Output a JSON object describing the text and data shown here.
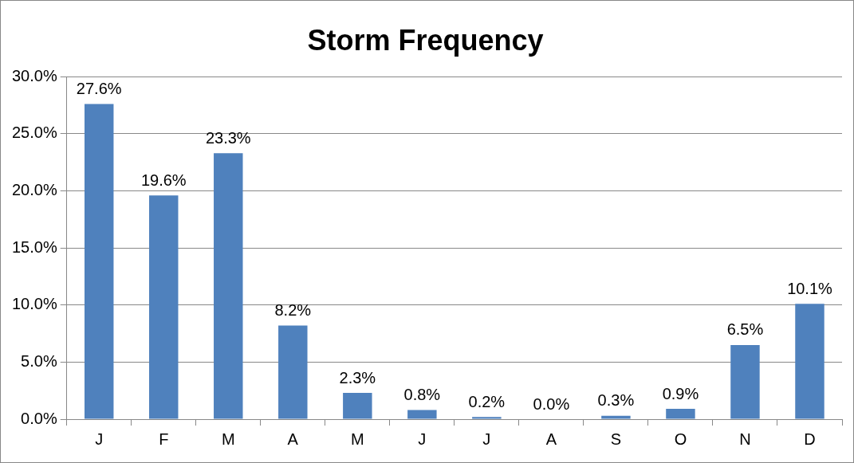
{
  "chart_data": {
    "type": "bar",
    "title": "Storm Frequency",
    "categories": [
      "J",
      "F",
      "M",
      "A",
      "M",
      "J",
      "J",
      "A",
      "S",
      "O",
      "N",
      "D"
    ],
    "values": [
      27.6,
      19.6,
      23.3,
      8.2,
      2.3,
      0.8,
      0.2,
      0.0,
      0.3,
      0.9,
      6.5,
      10.1
    ],
    "value_labels": [
      "27.6%",
      "19.6%",
      "23.3%",
      "8.2%",
      "2.3%",
      "0.8%",
      "0.2%",
      "0.0%",
      "0.3%",
      "0.9%",
      "6.5%",
      "10.1%"
    ],
    "color": "#4f81bd",
    "ylim": [
      0,
      30
    ],
    "yticks": [
      {
        "value": 0,
        "label": "0.0%"
      },
      {
        "value": 5,
        "label": "5.0%"
      },
      {
        "value": 10,
        "label": "10.0%"
      },
      {
        "value": 15,
        "label": "15.0%"
      },
      {
        "value": 20,
        "label": "20.0%"
      },
      {
        "value": 25,
        "label": "25.0%"
      },
      {
        "value": 30,
        "label": "30.0%"
      }
    ],
    "grid": "y",
    "legend": false
  }
}
